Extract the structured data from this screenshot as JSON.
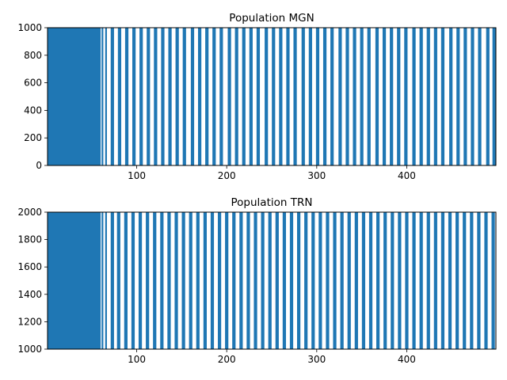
{
  "chart_data": [
    {
      "type": "scatter",
      "title": "Population MGN",
      "xlabel": "",
      "ylabel": "",
      "xlim": [
        1,
        499
      ],
      "ylim": [
        0,
        1000
      ],
      "xticks": [
        100,
        200,
        300,
        400
      ],
      "yticks": [
        0,
        200,
        400,
        600,
        800,
        1000
      ],
      "color": "#1f77b4",
      "solid_until": 60,
      "spike_times": [
        62,
        66,
        73,
        81,
        89,
        97,
        105,
        113,
        121,
        129,
        137,
        145,
        153,
        162,
        170,
        178,
        186,
        194,
        203,
        211,
        219,
        227,
        235,
        244,
        252,
        260,
        268,
        276,
        285,
        293,
        301,
        309,
        317,
        326,
        334,
        342,
        350,
        358,
        367,
        375,
        383,
        391,
        399,
        408,
        416,
        424,
        432,
        440,
        449,
        457,
        465,
        473,
        481,
        490,
        497
      ],
      "grid": false
    },
    {
      "type": "scatter",
      "title": "Population TRN",
      "xlabel": "",
      "ylabel": "",
      "xlim": [
        1,
        499
      ],
      "ylim": [
        1000,
        2000
      ],
      "xticks": [
        100,
        200,
        300,
        400
      ],
      "yticks": [
        1000,
        1200,
        1400,
        1600,
        1800,
        2000
      ],
      "color": "#1f77b4",
      "solid_until": 60,
      "spike_times": [
        62,
        66,
        73,
        80,
        88,
        96,
        104,
        112,
        120,
        128,
        136,
        144,
        152,
        160,
        168,
        176,
        184,
        192,
        200,
        208,
        216,
        224,
        232,
        240,
        248,
        256,
        264,
        272,
        280,
        288,
        296,
        304,
        312,
        320,
        328,
        336,
        344,
        352,
        360,
        368,
        376,
        384,
        392,
        400,
        408,
        416,
        424,
        432,
        440,
        448,
        456,
        464,
        472,
        480,
        488,
        496
      ],
      "grid": false
    }
  ]
}
